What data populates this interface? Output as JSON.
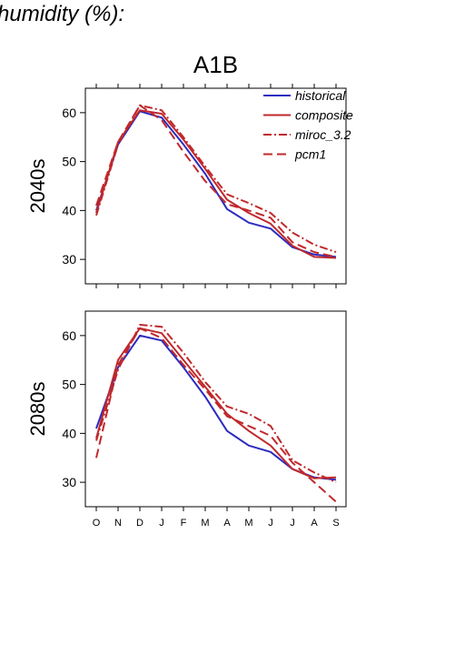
{
  "heading": "humidity (%):",
  "chart_data": {
    "type": "line",
    "title": "A1B",
    "categories": [
      "O",
      "N",
      "D",
      "J",
      "F",
      "M",
      "A",
      "M",
      "J",
      "J",
      "A",
      "S"
    ],
    "ylim": [
      25,
      65
    ],
    "yticks": [
      30,
      40,
      50,
      60
    ],
    "grid": false,
    "legend_position": "top-right",
    "legend": [
      {
        "name": "historical",
        "color": "#2b2bbf",
        "dash": "solid"
      },
      {
        "name": "composite",
        "color": "#c0282b",
        "dash": "solid"
      },
      {
        "name": "miroc_3.2",
        "color": "#c0282b",
        "dash": "dashdot"
      },
      {
        "name": "pcm1",
        "color": "#c0282b",
        "dash": "dashed"
      }
    ],
    "panels": [
      {
        "label": "2040s",
        "series": [
          {
            "name": "historical",
            "values": [
              40,
              53.5,
              60.3,
              59,
              53.5,
              47.5,
              40.3,
              37.5,
              36.3,
              32.5,
              31,
              30.5
            ]
          },
          {
            "name": "composite",
            "values": [
              39.5,
              54,
              60.5,
              59.8,
              54.5,
              48.5,
              42.2,
              39.5,
              37.3,
              32.8,
              30.5,
              30.3
            ]
          },
          {
            "name": "miroc_3.2",
            "values": [
              39,
              53.5,
              61.5,
              60.5,
              55,
              49,
              43.3,
              41.5,
              39.5,
              35.5,
              33,
              31.5
            ]
          },
          {
            "name": "pcm1",
            "values": [
              41,
              54,
              61.5,
              58.5,
              52,
              46,
              41.3,
              40,
              38.5,
              33.5,
              31.5,
              30.5
            ]
          }
        ]
      },
      {
        "label": "2080s",
        "series": [
          {
            "name": "historical",
            "values": [
              41,
              53.5,
              60,
              59,
              53.5,
              47.5,
              40.5,
              37.5,
              36.2,
              32.7,
              31,
              30.5
            ]
          },
          {
            "name": "composite",
            "values": [
              39,
              55,
              61.5,
              60.5,
              55,
              49.5,
              44,
              40.5,
              37.5,
              32.7,
              30.8,
              31
            ]
          },
          {
            "name": "miroc_3.2",
            "values": [
              38.5,
              53,
              62.2,
              61.8,
              56.5,
              50.5,
              45.5,
              44,
              41.5,
              34.5,
              32,
              30
            ]
          },
          {
            "name": "pcm1",
            "values": [
              35,
              54,
              61.5,
              59.5,
              54,
              49,
              43.5,
              41.5,
              39.5,
              34,
              30,
              26
            ]
          }
        ]
      }
    ]
  }
}
